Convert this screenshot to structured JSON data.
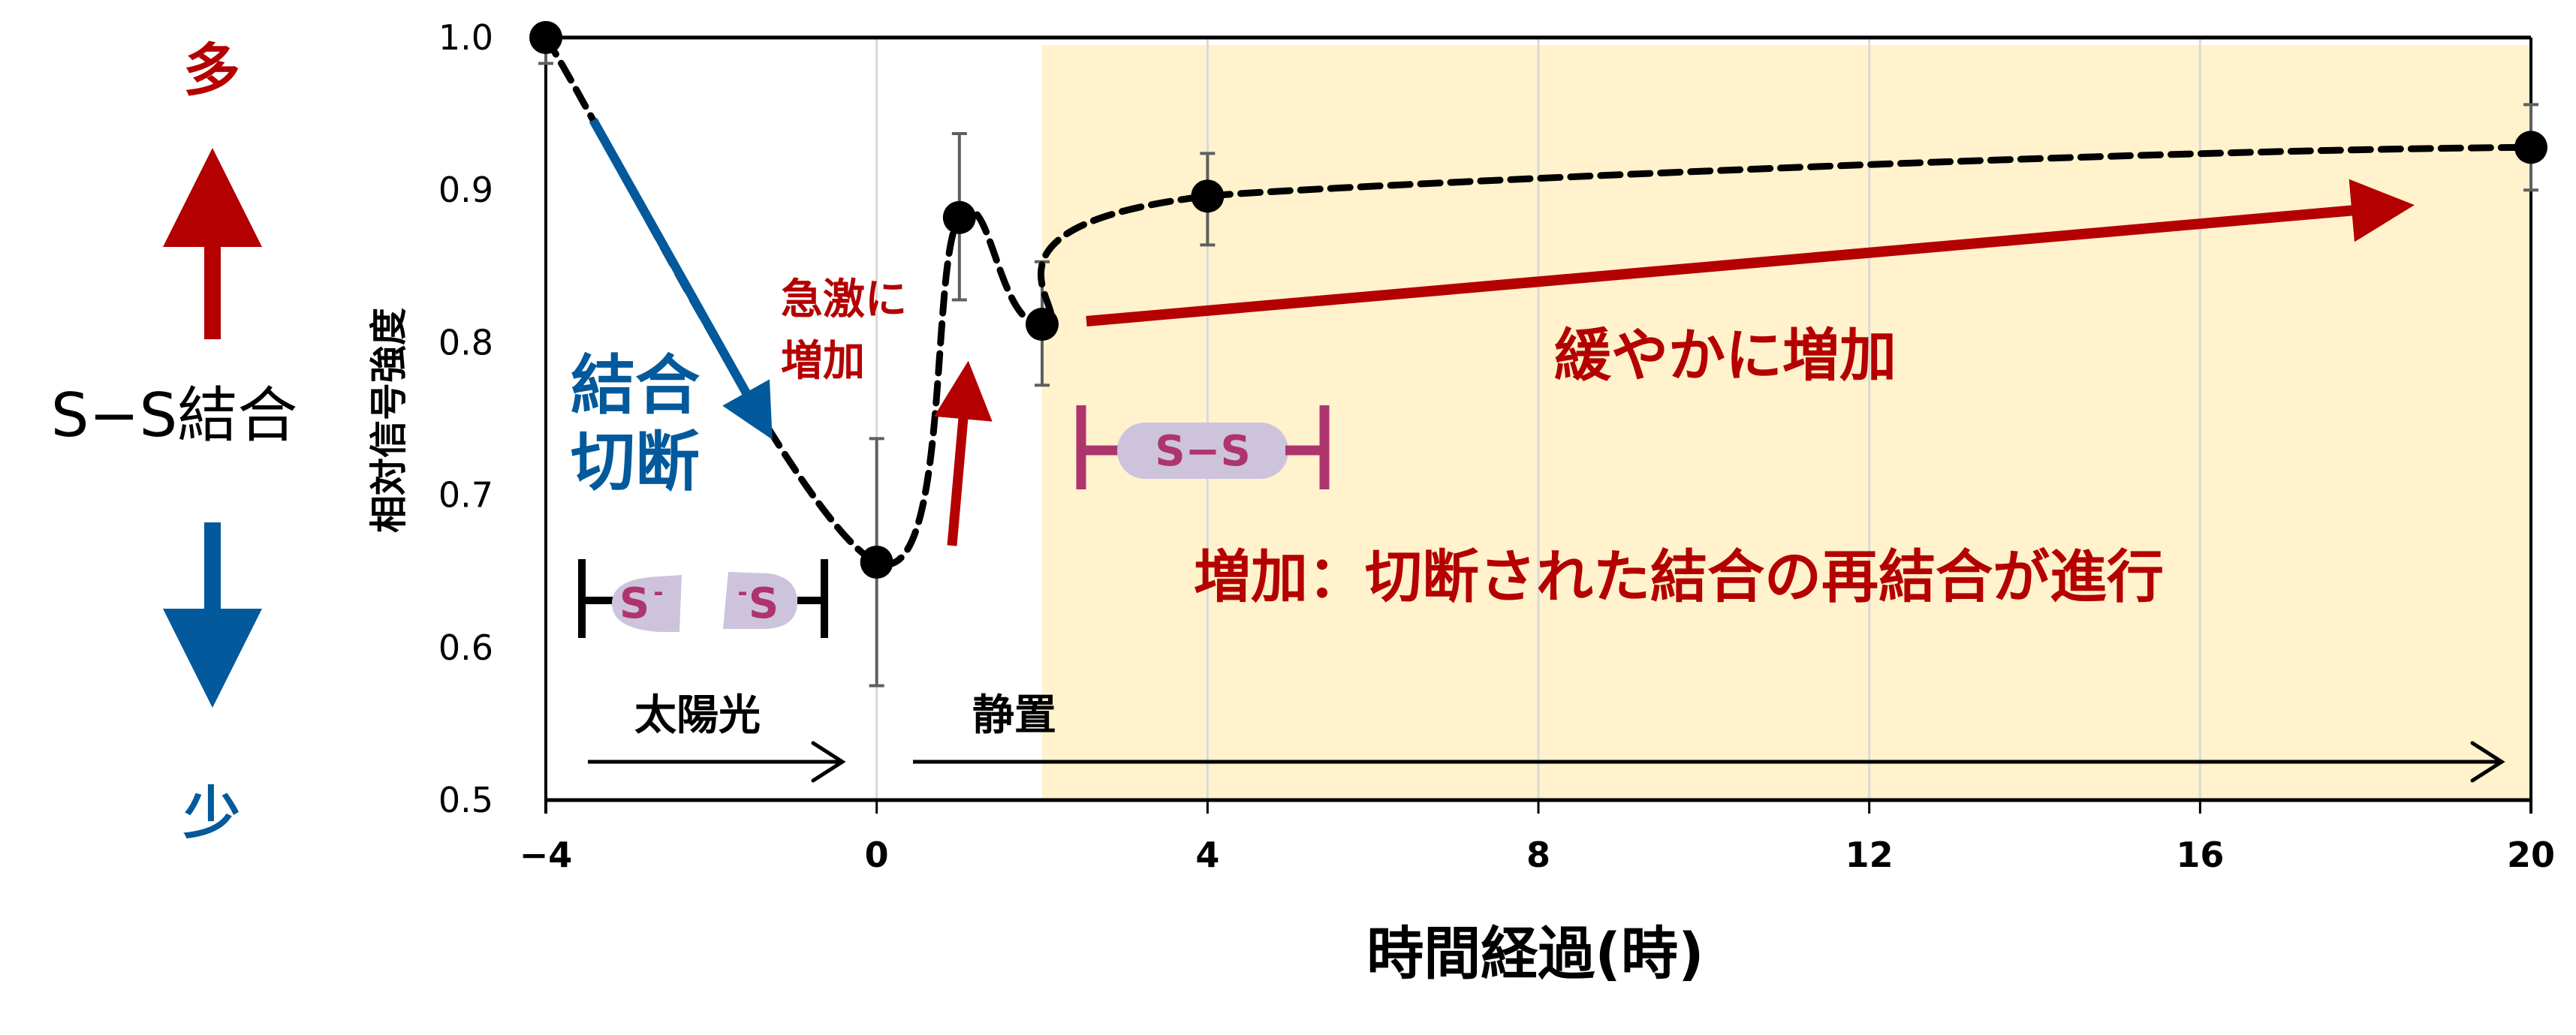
{
  "chart_data": {
    "type": "line",
    "title": "",
    "xlabel": "時間経過(時)",
    "ylabel": "相対信号強度",
    "xlim": [
      -4,
      20
    ],
    "ylim": [
      0.5,
      1.0
    ],
    "xticks": [
      -4,
      0,
      4,
      8,
      12,
      16,
      20
    ],
    "xtick_labels": [
      "−4",
      "0",
      "4",
      "8",
      "12",
      "16",
      "20"
    ],
    "yticks": [
      0.5,
      0.6,
      0.7,
      0.8,
      0.9,
      1.0
    ],
    "ytick_labels": [
      "0.5",
      "0.6",
      "0.7",
      "0.8",
      "0.9",
      "1.0"
    ],
    "grid": "vertical",
    "series": [
      {
        "name": "S-S結合 相対信号強度",
        "line_style": "dashed-smooth",
        "x": [
          -4,
          0,
          1,
          2,
          4,
          20
        ],
        "y": [
          1.0,
          0.656,
          0.882,
          0.812,
          0.896,
          0.928
        ],
        "error_upper": [
          1.0,
          0.737,
          0.937,
          0.853,
          0.924,
          0.956
        ],
        "error_lower": [
          0.983,
          0.575,
          0.828,
          0.772,
          0.864,
          0.9
        ]
      }
    ],
    "shaded_region": {
      "x_from": 2,
      "x_to": 20,
      "color": "#FFF2CC"
    },
    "annotations": [
      {
        "text": "結合\n切断",
        "color": "#02599B"
      },
      {
        "text": "急激に\n増加",
        "color": "#B40000"
      },
      {
        "text": "緩やかに増加",
        "color": "#B40000"
      },
      {
        "text": "増加：切断された結合の再結合が進行",
        "color": "#B40000"
      },
      {
        "text": "太陽光",
        "color": "#000000"
      },
      {
        "text": "静置",
        "color": "#000000"
      }
    ]
  },
  "left_panel": {
    "title": "S−S結合",
    "more_label": "多",
    "less_label": "少",
    "more_color": "#B40000",
    "less_color": "#02599B"
  },
  "annotations": {
    "cleavage_line1": "結合",
    "cleavage_line2": "切断",
    "rapid_line1": "急激に",
    "rapid_line2": "増加",
    "gradual": "緩やかに増加",
    "rebinding": "増加：切断された結合の再結合が進行",
    "sunlight": "太陽光",
    "rest": "静置"
  },
  "molecule_icons": {
    "broken_left": "S",
    "broken_left_charge": "-",
    "broken_right": "S",
    "broken_right_charge": "-",
    "bonded": "S−S"
  },
  "colors": {
    "red": "#B40000",
    "blue": "#02599B",
    "shade": "#FFF2CC",
    "magenta": "#AE346E",
    "pill": "#CEC3DD",
    "error_bar": "#5F5F5F",
    "grid": "#D9D9D9"
  }
}
